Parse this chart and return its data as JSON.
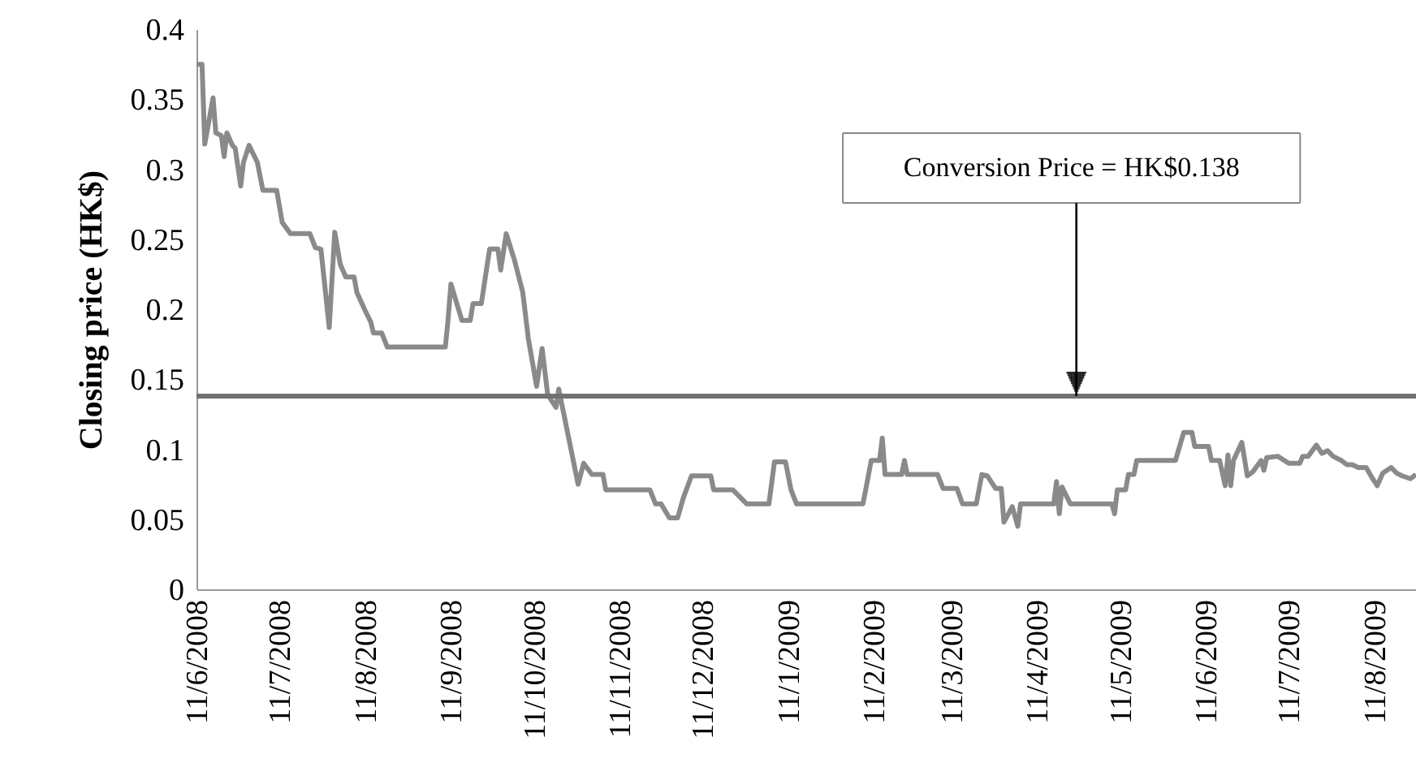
{
  "chart_data": {
    "type": "line",
    "ylabel": "Closing price (HK$)",
    "color": "#8a8a8a",
    "line_style": "solid",
    "grid": false,
    "x": [
      "2008-06-11",
      "2008-06-13",
      "2008-06-14",
      "2008-06-17",
      "2008-06-18",
      "2008-06-20",
      "2008-06-21",
      "2008-06-22",
      "2008-06-24",
      "2008-06-25",
      "2008-06-27",
      "2008-06-28",
      "2008-06-30",
      "2008-07-03",
      "2008-07-05",
      "2008-07-10",
      "2008-07-12",
      "2008-07-15",
      "2008-07-22",
      "2008-07-24",
      "2008-07-26",
      "2008-07-29",
      "2008-07-31",
      "2008-08-02",
      "2008-08-04",
      "2008-08-07",
      "2008-08-08",
      "2008-08-11",
      "2008-08-13",
      "2008-08-14",
      "2008-08-17",
      "2008-08-19",
      "2008-09-09",
      "2008-09-10",
      "2008-09-11",
      "2008-09-15",
      "2008-09-18",
      "2008-09-19",
      "2008-09-22",
      "2008-09-25",
      "2008-09-28",
      "2008-09-29",
      "2008-10-01",
      "2008-10-04",
      "2008-10-07",
      "2008-10-09",
      "2008-10-12",
      "2008-10-14",
      "2008-10-16",
      "2008-10-19",
      "2008-10-20",
      "2008-10-27",
      "2008-10-29",
      "2008-11-01",
      "2008-11-05",
      "2008-11-06",
      "2008-11-22",
      "2008-11-24",
      "2008-11-26",
      "2008-11-29",
      "2008-12-02",
      "2008-12-04",
      "2008-12-07",
      "2008-12-14",
      "2008-12-15",
      "2008-12-22",
      "2008-12-27",
      "2009-01-04",
      "2009-01-06",
      "2009-01-10",
      "2009-01-12",
      "2009-01-14",
      "2009-02-07",
      "2009-02-08",
      "2009-02-10",
      "2009-02-13",
      "2009-02-14",
      "2009-02-15",
      "2009-02-21",
      "2009-02-22",
      "2009-02-23",
      "2009-03-06",
      "2009-03-08",
      "2009-03-13",
      "2009-03-15",
      "2009-03-20",
      "2009-03-22",
      "2009-03-24",
      "2009-03-27",
      "2009-03-29",
      "2009-03-30",
      "2009-04-02",
      "2009-04-04",
      "2009-04-05",
      "2009-04-17",
      "2009-04-18",
      "2009-04-19",
      "2009-04-20",
      "2009-04-23",
      "2009-05-06",
      "2009-05-08",
      "2009-05-09",
      "2009-05-10",
      "2009-05-13",
      "2009-05-14",
      "2009-05-16",
      "2009-05-17",
      "2009-05-31",
      "2009-06-03",
      "2009-06-06",
      "2009-06-07",
      "2009-06-12",
      "2009-06-13",
      "2009-06-16",
      "2009-06-18",
      "2009-06-19",
      "2009-06-20",
      "2009-06-21",
      "2009-06-24",
      "2009-06-26",
      "2009-06-28",
      "2009-07-01",
      "2009-07-02",
      "2009-07-03",
      "2009-07-07",
      "2009-07-11",
      "2009-07-15",
      "2009-07-16",
      "2009-07-18",
      "2009-07-21",
      "2009-07-23",
      "2009-07-25",
      "2009-07-27",
      "2009-07-30",
      "2009-08-01",
      "2009-08-03",
      "2009-08-05",
      "2009-08-08",
      "2009-08-10",
      "2009-08-12",
      "2009-08-14",
      "2009-08-17",
      "2009-08-19",
      "2009-08-21",
      "2009-08-24",
      "2009-08-26"
    ],
    "values": [
      0.375,
      0.375,
      0.318,
      0.351,
      0.326,
      0.324,
      0.309,
      0.326,
      0.317,
      0.315,
      0.288,
      0.305,
      0.317,
      0.305,
      0.285,
      0.285,
      0.262,
      0.254,
      0.254,
      0.244,
      0.243,
      0.187,
      0.255,
      0.232,
      0.223,
      0.223,
      0.212,
      0.199,
      0.191,
      0.183,
      0.183,
      0.173,
      0.173,
      0.193,
      0.218,
      0.192,
      0.192,
      0.204,
      0.204,
      0.243,
      0.243,
      0.228,
      0.254,
      0.235,
      0.212,
      0.179,
      0.145,
      0.172,
      0.139,
      0.13,
      0.143,
      0.075,
      0.09,
      0.082,
      0.082,
      0.071,
      0.071,
      0.061,
      0.061,
      0.051,
      0.051,
      0.065,
      0.081,
      0.081,
      0.071,
      0.071,
      0.061,
      0.061,
      0.091,
      0.091,
      0.071,
      0.061,
      0.061,
      0.071,
      0.092,
      0.092,
      0.108,
      0.082,
      0.082,
      0.092,
      0.082,
      0.082,
      0.072,
      0.072,
      0.061,
      0.061,
      0.082,
      0.081,
      0.072,
      0.072,
      0.048,
      0.059,
      0.045,
      0.061,
      0.061,
      0.077,
      0.054,
      0.073,
      0.061,
      0.061,
      0.061,
      0.054,
      0.071,
      0.071,
      0.082,
      0.082,
      0.092,
      0.092,
      0.112,
      0.112,
      0.102,
      0.102,
      0.092,
      0.092,
      0.074,
      0.096,
      0.074,
      0.092,
      0.105,
      0.081,
      0.084,
      0.092,
      0.085,
      0.094,
      0.095,
      0.09,
      0.09,
      0.095,
      0.095,
      0.103,
      0.097,
      0.099,
      0.095,
      0.092,
      0.089,
      0.089,
      0.087,
      0.087,
      0.08,
      0.074,
      0.083,
      0.087,
      0.083,
      0.081,
      0.079,
      0.082
    ],
    "xlim": [
      "2008-06-11",
      "2009-08-26"
    ],
    "xticks": [
      {
        "value": "2008-06-11",
        "label": "11/6/2008"
      },
      {
        "value": "2008-07-11",
        "label": "11/7/2008"
      },
      {
        "value": "2008-08-11",
        "label": "11/8/2008"
      },
      {
        "value": "2008-09-11",
        "label": "11/9/2008"
      },
      {
        "value": "2008-10-11",
        "label": "11/10/2008"
      },
      {
        "value": "2008-11-11",
        "label": "11/11/2008"
      },
      {
        "value": "2008-12-11",
        "label": "11/12/2008"
      },
      {
        "value": "2009-01-11",
        "label": "11/1/2009"
      },
      {
        "value": "2009-02-11",
        "label": "11/2/2009"
      },
      {
        "value": "2009-03-11",
        "label": "11/3/2009"
      },
      {
        "value": "2009-04-11",
        "label": "11/4/2009"
      },
      {
        "value": "2009-05-11",
        "label": "11/5/2009"
      },
      {
        "value": "2009-06-11",
        "label": "11/6/2009"
      },
      {
        "value": "2009-07-11",
        "label": "11/7/2009"
      },
      {
        "value": "2009-08-11",
        "label": "11/8/2009"
      }
    ],
    "ylim": [
      0,
      0.4
    ],
    "yticks": [
      0,
      0.05,
      0.1,
      0.15,
      0.2,
      0.25,
      0.3,
      0.35,
      0.4
    ],
    "ref_lines": [
      {
        "axis": "y",
        "value": 0.138,
        "label": "Conversion Price = HK$0.138",
        "color": "#717171"
      }
    ]
  }
}
